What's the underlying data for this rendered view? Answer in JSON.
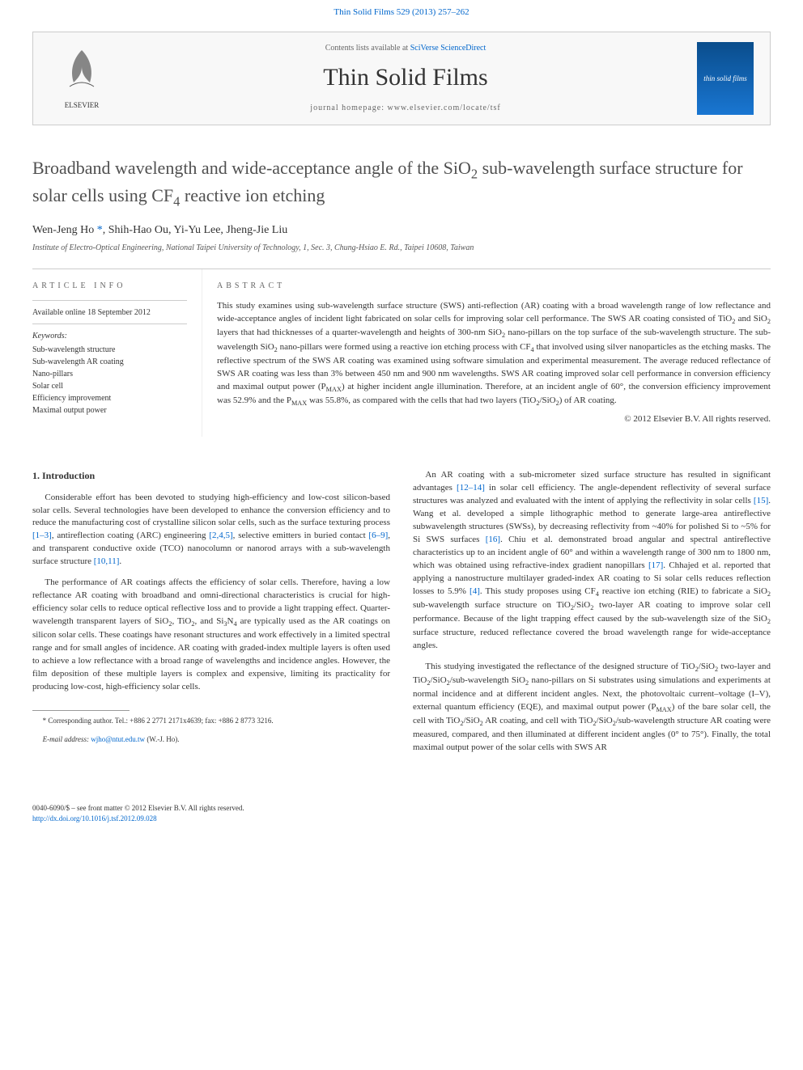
{
  "top_link": {
    "text": "Thin Solid Films 529 (2013) 257–262",
    "color": "#0066cc"
  },
  "header": {
    "contents_prefix": "Contents lists available at ",
    "contents_link": "SciVerse ScienceDirect",
    "journal_name": "Thin Solid Films",
    "homepage": "journal homepage: www.elsevier.com/locate/tsf",
    "publisher_logo_alt": "ELSEVIER",
    "cover_text": "thin solid films"
  },
  "article": {
    "title_html": "Broadband wavelength and wide-acceptance angle of the SiO<sub>2</sub> sub-wavelength surface structure for solar cells using CF<sub>4</sub> reactive ion etching",
    "authors_html": "Wen-Jeng Ho <span class=\"corr-star\">*</span>, Shih-Hao Ou, Yi-Yu Lee, Jheng-Jie Liu",
    "affiliation": "Institute of Electro-Optical Engineering, National Taipei University of Technology, 1, Sec. 3, Chung-Hsiao E. Rd., Taipei 10608, Taiwan"
  },
  "info": {
    "label": "ARTICLE INFO",
    "available": "Available online 18 September 2012",
    "keywords_label": "Keywords:",
    "keywords": [
      "Sub-wavelength structure",
      "Sub-wavelength AR coating",
      "Nano-pillars",
      "Solar cell",
      "Efficiency improvement",
      "Maximal output power"
    ]
  },
  "abstract": {
    "label": "ABSTRACT",
    "text_html": "This study examines using sub-wavelength surface structure (SWS) anti-reflection (AR) coating with a broad wavelength range of low reflectance and wide-acceptance angles of incident light fabricated on solar cells for improving solar cell performance. The SWS AR coating consisted of TiO<sub>2</sub> and SiO<sub>2</sub> layers that had thicknesses of a quarter-wavelength and heights of 300-nm SiO<sub>2</sub> nano-pillars on the top surface of the sub-wavelength structure. The sub-wavelength SiO<sub>2</sub> nano-pillars were formed using a reactive ion etching process with CF<sub>4</sub> that involved using silver nanoparticles as the etching masks. The reflective spectrum of the SWS AR coating was examined using software simulation and experimental measurement. The average reduced reflectance of SWS AR coating was less than 3% between 450 nm and 900 nm wavelengths. SWS AR coating improved solar cell performance in conversion efficiency and maximal output power (P<sub>MAX</sub>) at higher incident angle illumination. Therefore, at an incident angle of 60°, the conversion efficiency improvement was 52.9% and the P<sub>MAX</sub> was 55.8%, as compared with the cells that had two layers (TiO<sub>2</sub>/SiO<sub>2</sub>) of AR coating.",
    "copyright": "© 2012 Elsevier B.V. All rights reserved."
  },
  "body": {
    "section1_heading": "1. Introduction",
    "left_paras": [
      "Considerable effort has been devoted to studying high-efficiency and low-cost silicon-based solar cells. Several technologies have been developed to enhance the conversion efficiency and to reduce the manufacturing cost of crystalline silicon solar cells, such as the surface texturing process <span class=\"ref-link\">[1–3]</span>, antireflection coating (ARC) engineering <span class=\"ref-link\">[2,4,5]</span>, selective emitters in buried contact <span class=\"ref-link\">[6–9]</span>, and transparent conductive oxide (TCO) nanocolumn or nanorod arrays with a sub-wavelength surface structure <span class=\"ref-link\">[10,11]</span>.",
      "The performance of AR coatings affects the efficiency of solar cells. Therefore, having a low reflectance AR coating with broadband and omni-directional characteristics is crucial for high-efficiency solar cells to reduce optical reflective loss and to provide a light trapping effect. Quarter-wavelength transparent layers of SiO<sub>2</sub>, TiO<sub>2</sub>, and Si<sub>3</sub>N<sub>4</sub> are typically used as the AR coatings on silicon solar cells. These coatings have resonant structures and work effectively in a limited spectral range and for small angles of incidence. AR coating with graded-index multiple layers is often used to achieve a low reflectance with a broad range of wavelengths and incidence angles. However, the film deposition of these multiple layers is complex and expensive, limiting its practicality for producing low-cost, high-efficiency solar cells."
    ],
    "right_paras": [
      "An AR coating with a sub-micrometer sized surface structure has resulted in significant advantages <span class=\"ref-link\">[12–14]</span> in solar cell efficiency. The angle-dependent reflectivity of several surface structures was analyzed and evaluated with the intent of applying the reflectivity in solar cells <span class=\"ref-link\">[15]</span>. Wang et al. developed a simple lithographic method to generate large-area antireflective subwavelength structures (SWSs), by decreasing reflectivity from ~40% for polished Si to ~5% for Si SWS surfaces <span class=\"ref-link\">[16]</span>. Chiu et al. demonstrated broad angular and spectral antireflective characteristics up to an incident angle of 60° and within a wavelength range of 300 nm to 1800 nm, which was obtained using refractive-index gradient nanopillars <span class=\"ref-link\">[17]</span>. Chhajed et al. reported that applying a nanostructure multilayer graded-index AR coating to Si solar cells reduces reflection losses to 5.9% <span class=\"ref-link\">[4]</span>. This study proposes using CF<sub>4</sub> reactive ion etching (RIE) to fabricate a SiO<sub>2</sub> sub-wavelength surface structure on TiO<sub>2</sub>/SiO<sub>2</sub> two-layer AR coating to improve solar cell performance. Because of the light trapping effect caused by the sub-wavelength size of the SiO<sub>2</sub> surface structure, reduced reflectance covered the broad wavelength range for wide-acceptance angles.",
      "This studying investigated the reflectance of the designed structure of TiO<sub>2</sub>/SiO<sub>2</sub> two-layer and TiO<sub>2</sub>/SiO<sub>2</sub>/sub-wavelength SiO<sub>2</sub> nano-pillars on Si substrates using simulations and experiments at normal incidence and at different incident angles. Next, the photovoltaic current–voltage (I–V), external quantum efficiency (EQE), and maximal output power (P<sub>MAX</sub>) of the bare solar cell, the cell with TiO<sub>2</sub>/SiO<sub>2</sub> AR coating, and cell with TiO<sub>2</sub>/SiO<sub>2</sub>/sub-wavelength structure AR coating were measured, compared, and then illuminated at different incident angles (0° to 75°). Finally, the total maximal output power of the solar cells with SWS AR"
    ]
  },
  "footnote": {
    "corr": "* Corresponding author. Tel.: +886 2 2771 2171x4639; fax: +886 2 8773 3216.",
    "email_label": "E-mail address: ",
    "email": "wjho@ntut.edu.tw",
    "email_suffix": " (W.-J. Ho)."
  },
  "footer": {
    "line1": "0040-6090/$ – see front matter © 2012 Elsevier B.V. All rights reserved.",
    "doi": "http://dx.doi.org/10.1016/j.tsf.2012.09.028"
  },
  "colors": {
    "link": "#0066cc",
    "text": "#333333",
    "border": "#cccccc",
    "bg": "#ffffff"
  }
}
